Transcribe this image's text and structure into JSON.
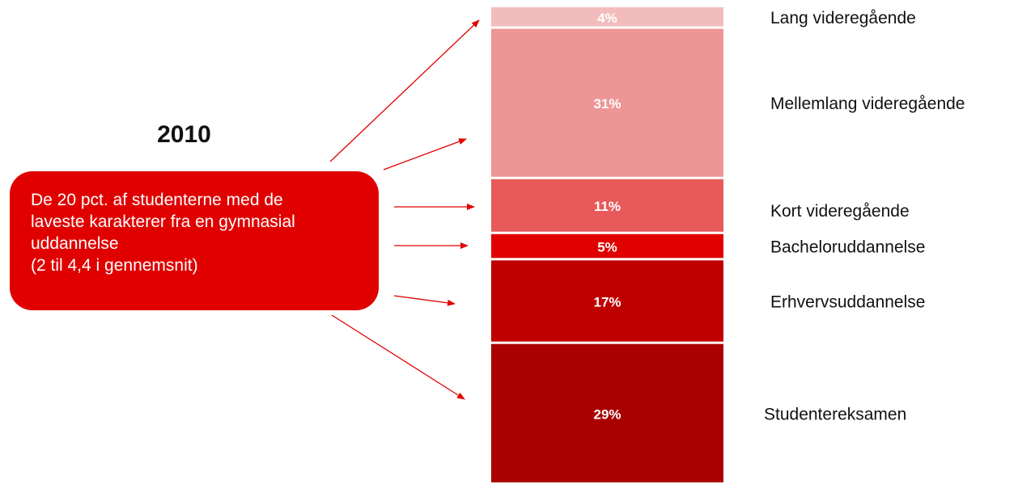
{
  "year_label": "2010",
  "callout": {
    "lines": [
      "De 20 pct. af studenterne med de",
      "laveste karakterer fra en gymnasial",
      "uddannelse",
      "(2 til 4,4 i gennemsnit)"
    ],
    "color": "#e00000"
  },
  "arrow_color": "#e00000",
  "chart_data": {
    "type": "bar",
    "stacked": true,
    "title": "",
    "xlabel": "",
    "ylabel": "",
    "ylim": [
      0,
      100
    ],
    "grid": false,
    "legend": "none",
    "series": [
      {
        "name": "Studentereksamen",
        "value": 29,
        "label": "29%",
        "color": "#aa0000"
      },
      {
        "name": "Erhvervsuddannelse",
        "value": 17,
        "label": "17%",
        "color": "#c00000"
      },
      {
        "name": "Bacheloruddannelse",
        "value": 5,
        "label": "5%",
        "color": "#e00000"
      },
      {
        "name": "Kort videregående",
        "value": 11,
        "label": "11%",
        "color": "#e85a5a"
      },
      {
        "name": "Mellemlang videregående",
        "value": 31,
        "label": "31%",
        "color": "#ee9696"
      },
      {
        "name": "Lang videregående",
        "value": 4,
        "label": "4%",
        "color": "#f2bcbc"
      }
    ]
  }
}
